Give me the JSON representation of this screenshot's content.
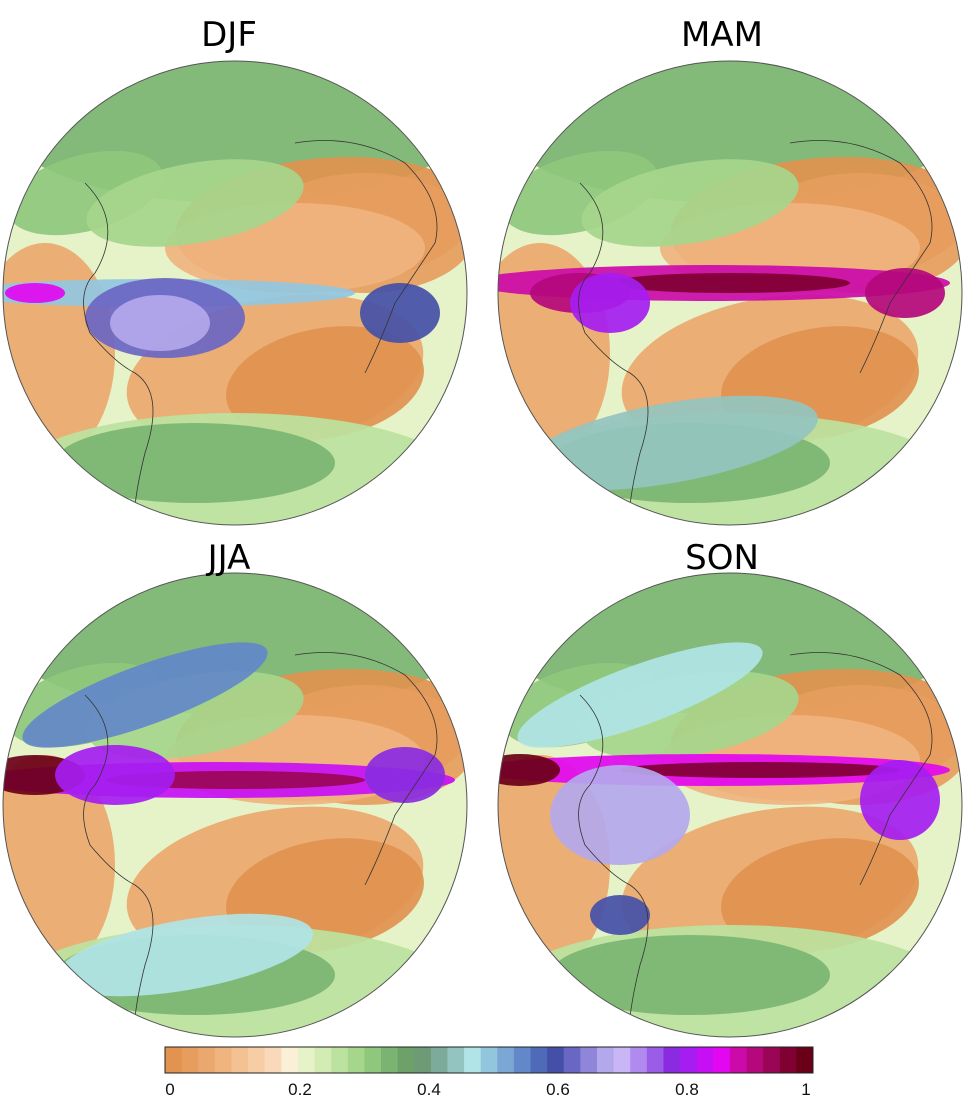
{
  "panels": [
    {
      "title": "DJF"
    },
    {
      "title": "MAM"
    },
    {
      "title": "JJA"
    },
    {
      "title": "SON"
    }
  ],
  "colorbar": {
    "colors": [
      "#e1934f",
      "#e69d5e",
      "#eba86e",
      "#f0b47f",
      "#f4c192",
      "#f7cda6",
      "#f9d9ba",
      "#faf0d8",
      "#e6f2c8",
      "#d2ecb4",
      "#bce2a0",
      "#a6d68c",
      "#8fc87d",
      "#7bb472",
      "#6ea06a",
      "#6e9a76",
      "#7dab9b",
      "#94c4bf",
      "#b0e4e6",
      "#92c6df",
      "#7aa7d6",
      "#6388c9",
      "#4f6ab9",
      "#4450a8",
      "#6a66c4",
      "#8f86da",
      "#b4a8ec",
      "#c8b6f6",
      "#b18aef",
      "#9b5ce7",
      "#8a2be2",
      "#a51df0",
      "#c70ff5",
      "#e207f0",
      "#cc0aaa",
      "#b4087c",
      "#9a0556",
      "#800032",
      "#6a0018"
    ],
    "ticks": [
      "0",
      "0.2",
      "0.4",
      "0.6",
      "0.8",
      "1"
    ]
  }
}
